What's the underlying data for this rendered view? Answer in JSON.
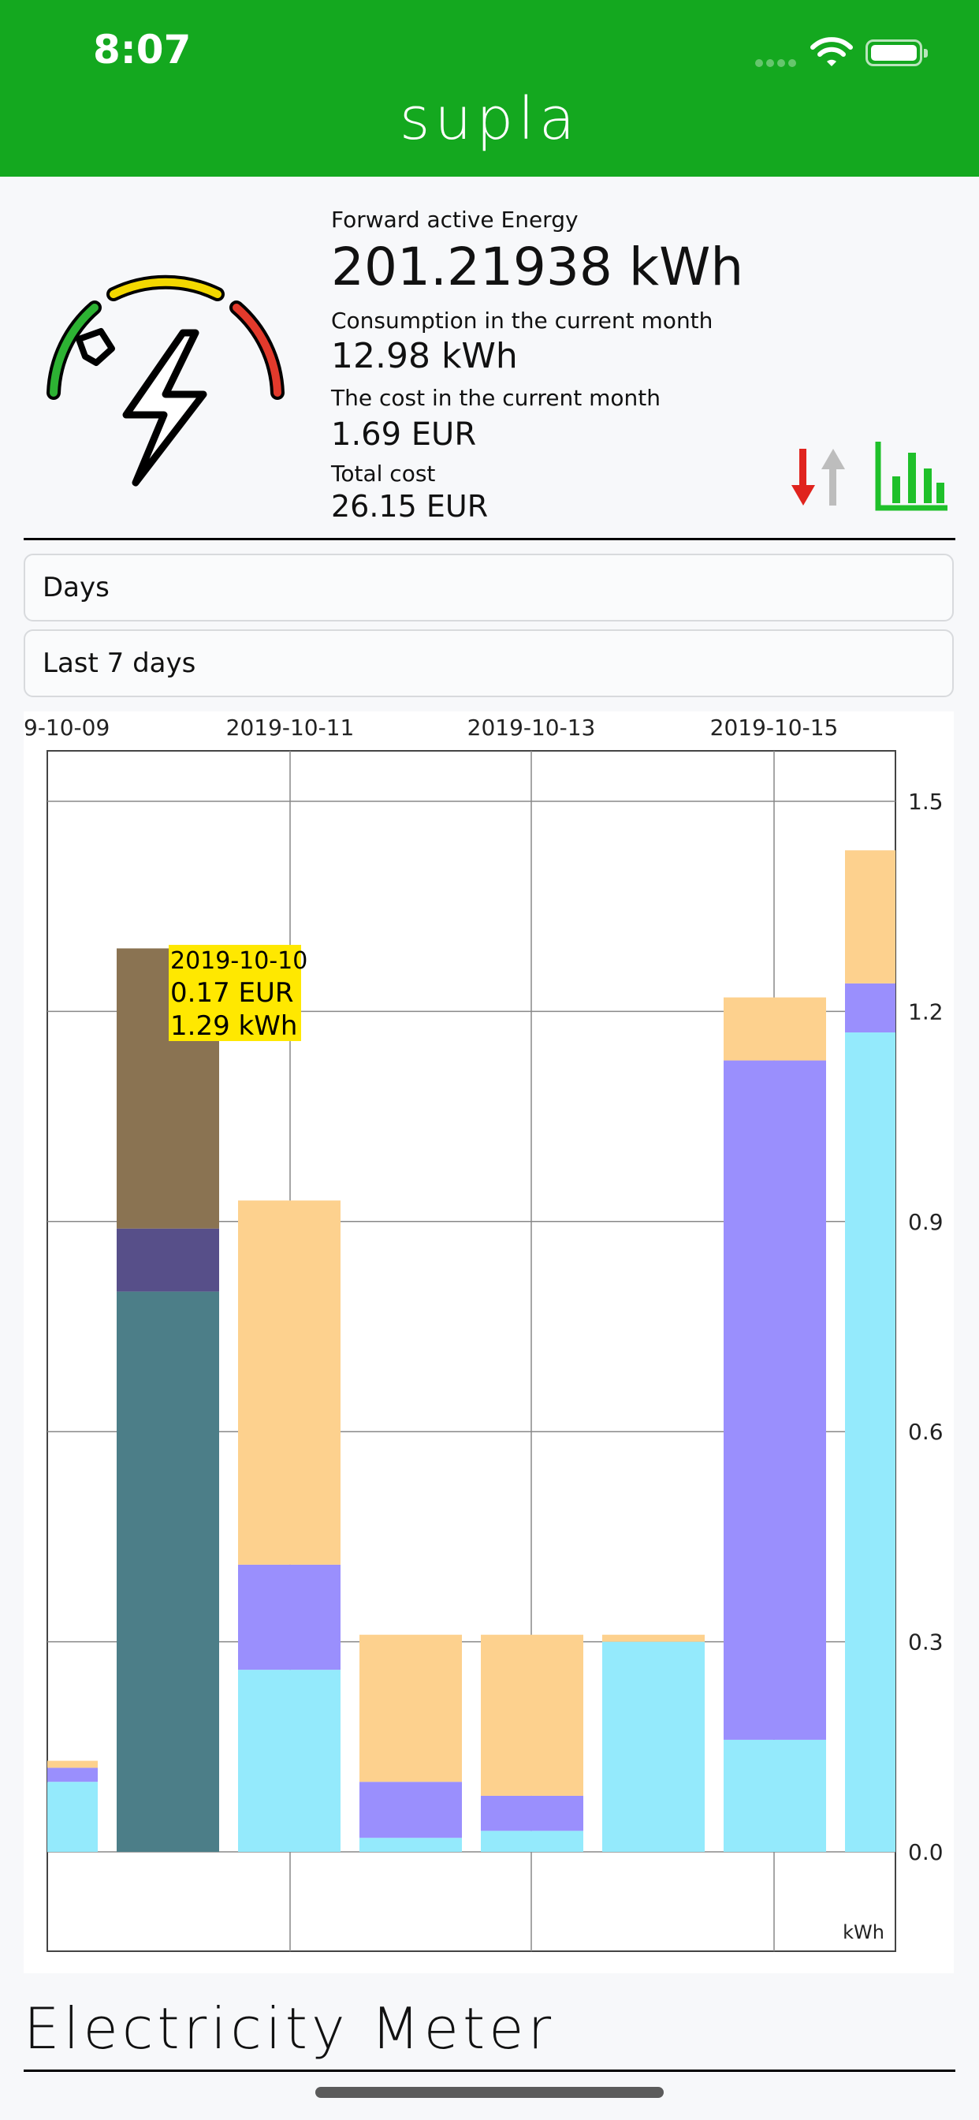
{
  "status_bar": {
    "time": "8:07"
  },
  "header": {
    "title": "supla"
  },
  "meter": {
    "forward_label": "Forward active Energy",
    "forward_value": "201.21938 kWh",
    "consumption_label": "Consumption in the current month",
    "consumption_value": "12.98 kWh",
    "cost_label": "The cost in the current month",
    "cost_value": "1.69 EUR",
    "total_label": "Total cost",
    "total_value": "26.15 EUR"
  },
  "selectors": {
    "period": "Days",
    "range": "Last 7 days"
  },
  "footer": {
    "caption": "Electricity Meter"
  },
  "colors": {
    "header": "#14a81f",
    "phase1": "#94eafc",
    "phase2": "#9a8ffd",
    "phase3": "#fdd18e",
    "tooltip": "#ffe800"
  },
  "chart_data": {
    "type": "bar",
    "stacked": true,
    "x_tick_labels": [
      "9-10-09",
      "2019-10-11",
      "2019-10-13",
      "2019-10-15"
    ],
    "categories": [
      "2019-10-09",
      "2019-10-10",
      "2019-10-11",
      "2019-10-12",
      "2019-10-13",
      "2019-10-14",
      "2019-10-15",
      "2019-10-16"
    ],
    "series": [
      {
        "values": [
          0.1,
          0.8,
          0.26,
          0.02,
          0.03,
          0.3,
          0.16,
          1.17
        ],
        "color": "#94eafc"
      },
      {
        "values": [
          0.02,
          0.09,
          0.15,
          0.08,
          0.05,
          0.0,
          0.97,
          0.07
        ],
        "color": "#9a8ffd"
      },
      {
        "values": [
          0.01,
          0.4,
          0.52,
          0.21,
          0.23,
          0.01,
          0.09,
          0.19
        ],
        "color": "#fdd18e"
      }
    ],
    "highlighted_index": 1,
    "tooltip": {
      "date": "2019-10-10",
      "cost": "0.17 EUR",
      "energy": "1.29 kWh"
    },
    "ylim": [
      0.0,
      1.5
    ],
    "y_ticks": [
      "0.0",
      "0.3",
      "0.6",
      "0.9",
      "1.2",
      "1.5"
    ],
    "y_unit": "kWh",
    "grid": true
  }
}
